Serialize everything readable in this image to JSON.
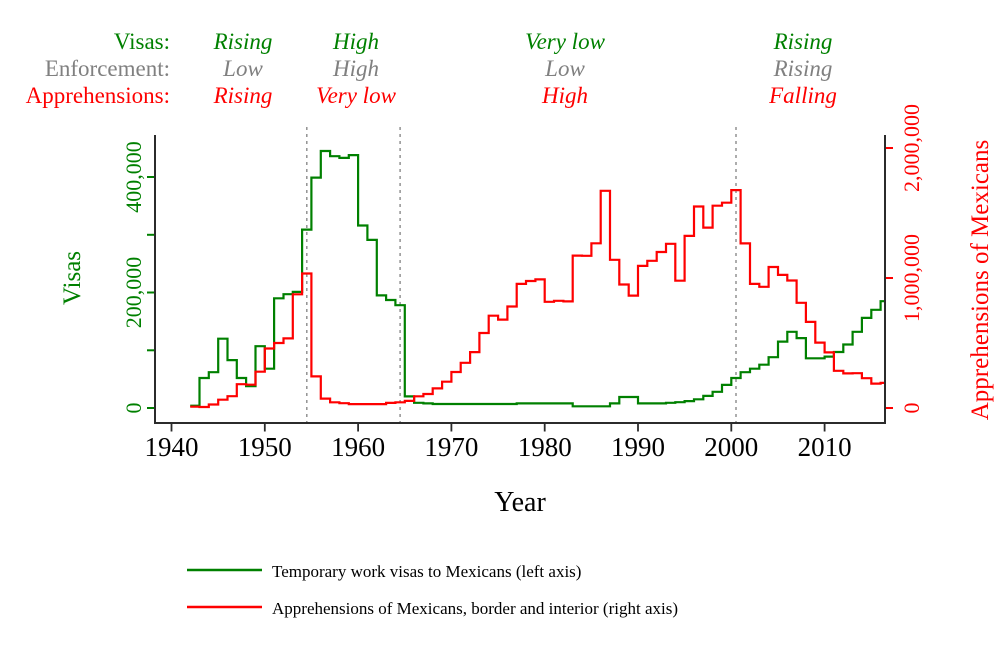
{
  "colors": {
    "visas_green": "#008000",
    "apprehensions_red": "#fe0000",
    "enforcement_gray": "#808080",
    "axis_line": "#2b2b2b",
    "reference_line": "#8a8a8a",
    "background": "#ffffff"
  },
  "annotations": {
    "rows": [
      {
        "label": "Visas:",
        "color": "#008000",
        "values": [
          "Rising",
          "High",
          "Very low",
          "Rising"
        ]
      },
      {
        "label": "Enforcement:",
        "color": "#808080",
        "values": [
          "Low",
          "High",
          "Low",
          "Rising"
        ]
      },
      {
        "label": "Apprehensions:",
        "color": "#fe0000",
        "values": [
          "Rising",
          "Very low",
          "High",
          "Falling"
        ]
      }
    ]
  },
  "chart_data": {
    "type": "line",
    "step": true,
    "title": "",
    "xlabel": "Year",
    "x_ticks": [
      1940,
      1950,
      1960,
      1970,
      1980,
      1990,
      2000,
      2010
    ],
    "x_range": [
      1938.2,
      2016.5
    ],
    "grid": false,
    "legend_position": "bottom",
    "reference_lines_x": [
      1954.5,
      1964.5,
      2000.5
    ],
    "left_axis": {
      "title": "Visas",
      "color": "#008000",
      "ticks": [
        0,
        200000,
        400000
      ],
      "minor_ticks": [
        100000,
        300000
      ],
      "range": [
        0,
        472000
      ]
    },
    "right_axis": {
      "title": "Apprehensions of Mexicans",
      "color": "#fe0000",
      "ticks": [
        0,
        1000000,
        2000000
      ],
      "minor_ticks": [],
      "range": [
        0,
        2100000
      ]
    },
    "x": [
      1942,
      1943,
      1944,
      1945,
      1946,
      1947,
      1948,
      1949,
      1950,
      1951,
      1952,
      1953,
      1954,
      1955,
      1956,
      1957,
      1958,
      1959,
      1960,
      1961,
      1962,
      1963,
      1964,
      1965,
      1966,
      1967,
      1968,
      1969,
      1970,
      1971,
      1972,
      1973,
      1974,
      1975,
      1976,
      1977,
      1978,
      1979,
      1980,
      1981,
      1982,
      1983,
      1984,
      1985,
      1986,
      1987,
      1988,
      1989,
      1990,
      1991,
      1992,
      1993,
      1994,
      1995,
      1996,
      1997,
      1998,
      1999,
      2000,
      2001,
      2002,
      2003,
      2004,
      2005,
      2006,
      2007,
      2008,
      2009,
      2010,
      2011,
      2012,
      2013,
      2014,
      2015,
      2016
    ],
    "series": [
      {
        "id": "visas",
        "name": "Temporary work visas to Mexicans (left axis)",
        "axis": "left",
        "color": "#008000",
        "values": [
          4000,
          52000,
          62000,
          120000,
          83000,
          52000,
          38000,
          107000,
          68000,
          190000,
          197000,
          201000,
          309000,
          399000,
          445000,
          436000,
          433000,
          438000,
          316000,
          291000,
          195000,
          187000,
          178000,
          20000,
          9000,
          8000,
          7000,
          7000,
          7000,
          7000,
          7000,
          7000,
          7000,
          7000,
          7000,
          8000,
          8000,
          8000,
          8000,
          8000,
          8000,
          3000,
          3000,
          3000,
          3000,
          8000,
          19000,
          19000,
          8000,
          8000,
          8000,
          9000,
          10000,
          12000,
          15000,
          21000,
          28000,
          40000,
          52000,
          62000,
          68000,
          75000,
          88000,
          115000,
          132000,
          121000,
          86000,
          86000,
          89000,
          97000,
          110000,
          132000,
          156000,
          170000,
          185000
        ]
      },
      {
        "id": "apprehensions",
        "name": "Apprehensions of Mexicans, border and interior (right axis)",
        "axis": "right",
        "color": "#fe0000",
        "values": [
          10000,
          8000,
          27000,
          64000,
          91000,
          183000,
          179000,
          279000,
          458000,
          500000,
          535000,
          875000,
          1035000,
          243000,
          72000,
          44000,
          37000,
          30000,
          30000,
          30000,
          30000,
          39000,
          44000,
          55000,
          90000,
          108000,
          151000,
          202000,
          277000,
          348000,
          430000,
          577000,
          710000,
          680000,
          781000,
          955000,
          977000,
          989000,
          817000,
          825000,
          820000,
          1172000,
          1171000,
          1267000,
          1671000,
          1140000,
          950000,
          865000,
          1093000,
          1132000,
          1200000,
          1263000,
          979000,
          1324000,
          1550000,
          1388000,
          1556000,
          1579000,
          1676000,
          1266000,
          955000,
          932000,
          1085000,
          1024000,
          981000,
          809000,
          662000,
          503000,
          428000,
          286000,
          266000,
          268000,
          229000,
          188000,
          193000
        ]
      }
    ]
  },
  "legend": {
    "items": [
      {
        "label": "Temporary work visas to Mexicans (left axis)",
        "color": "#008000"
      },
      {
        "label": "Apprehensions of Mexicans, border and interior (right axis)",
        "color": "#fe0000"
      }
    ]
  }
}
